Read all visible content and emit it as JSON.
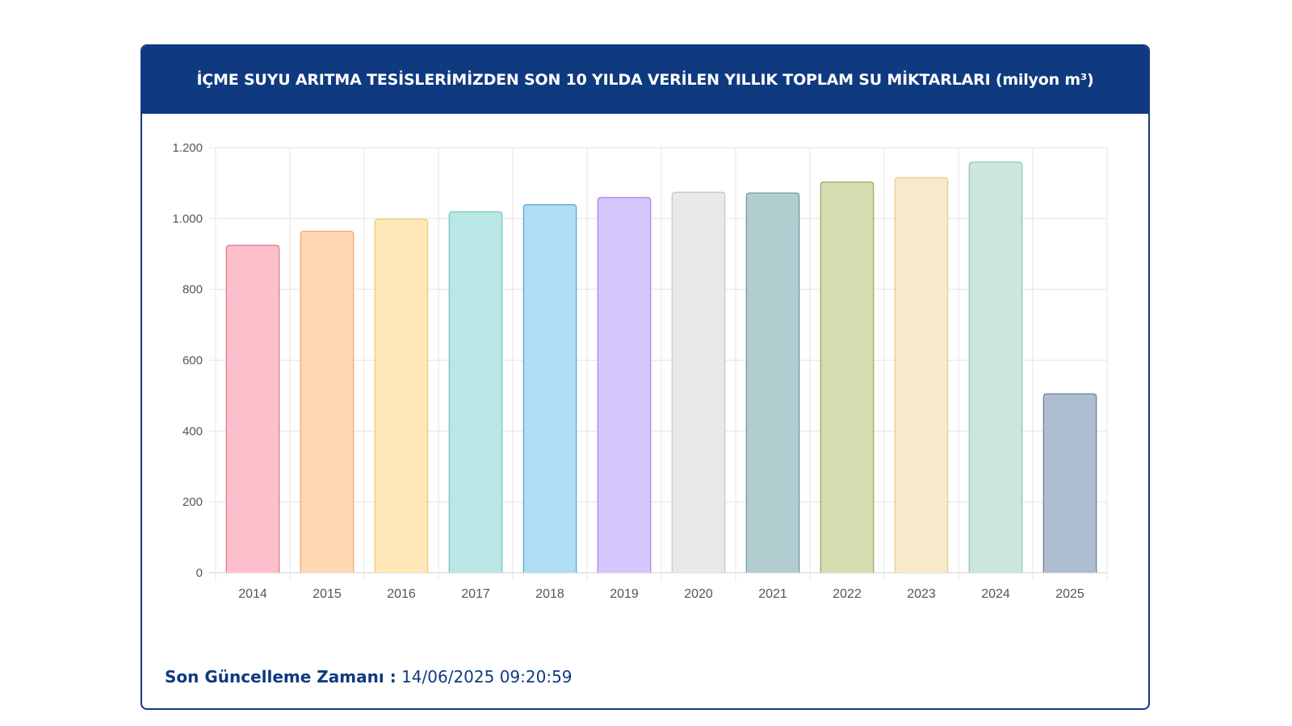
{
  "header": {
    "title": "İÇME SUYU ARITMA TESİSLERİMİZDEN SON 10 YILDA VERİLEN YILLIK TOPLAM SU MİKTARLARI (milyon m³)"
  },
  "footer": {
    "label": "Son Güncelleme Zamanı :",
    "value": "14/06/2025 09:20:59"
  },
  "chart_data": {
    "type": "bar",
    "title": "İÇME SUYU ARITMA TESİSLERİMİZDEN SON 10 YILDA VERİLEN YILLIK TOPLAM SU MİKTARLARI (milyon m³)",
    "xlabel": "",
    "ylabel": "",
    "categories": [
      "2014",
      "2015",
      "2016",
      "2017",
      "2018",
      "2019",
      "2020",
      "2021",
      "2022",
      "2023",
      "2024",
      "2025"
    ],
    "values": [
      924,
      964,
      998,
      1019,
      1039,
      1059,
      1074,
      1072,
      1103,
      1115,
      1159,
      505
    ],
    "ylim": [
      0,
      1200
    ],
    "yticks": [
      0,
      200,
      400,
      600,
      800,
      1000,
      1200
    ],
    "ytick_labels": [
      "0",
      "200",
      "400",
      "600",
      "800",
      "1.000",
      "1.200"
    ],
    "grid": true,
    "legend": "none",
    "fills": [
      "#ffc0cd",
      "#ffd8b1",
      "#fee8b8",
      "#bbe6e6",
      "#b0dcf6",
      "#d6c6fe",
      "#e8e9eb",
      "#b2cdd0",
      "#d6dbb0",
      "#f7eaca",
      "#cce6de",
      "#afbdd1"
    ],
    "strokes": [
      "#e07890",
      "#f0a870",
      "#f0cc70",
      "#70c8c8",
      "#60a8d8",
      "#a888e8",
      "#c8c8cc",
      "#6e9aa0",
      "#a0a860",
      "#e8d090",
      "#90c8b8",
      "#6a7f9c"
    ]
  }
}
